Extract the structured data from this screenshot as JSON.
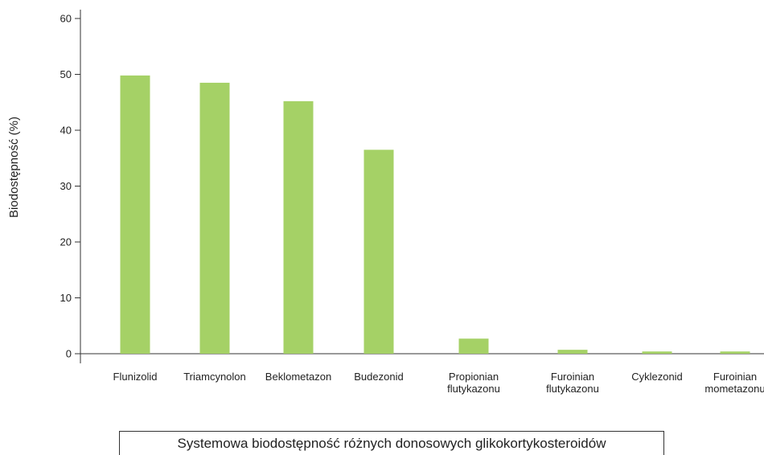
{
  "chart_data": {
    "type": "bar",
    "categories": [
      [
        "Flunizolid"
      ],
      [
        "Triamcynolon"
      ],
      [
        "Beklometazon"
      ],
      [
        "Budezonid"
      ],
      [
        "Propionian",
        "flutykazonu"
      ],
      [
        "Furoinian",
        "flutykazonu"
      ],
      [
        "Cyklezonid"
      ],
      [
        "Furoinian",
        "mometazonu"
      ]
    ],
    "values": [
      49.8,
      48.5,
      45.2,
      36.5,
      2.7,
      0.7,
      0.4,
      0.4
    ],
    "ylabel": "Biodostępność (%)",
    "ylim": [
      0,
      60
    ],
    "yticks": [
      "0",
      "10",
      "20",
      "30",
      "40",
      "50",
      "60"
    ],
    "bar_color": "#a5d166",
    "grid": false,
    "legend": "none"
  },
  "caption": "Systemowa biodostępność różnych donosowych glikokortykosteroidów"
}
